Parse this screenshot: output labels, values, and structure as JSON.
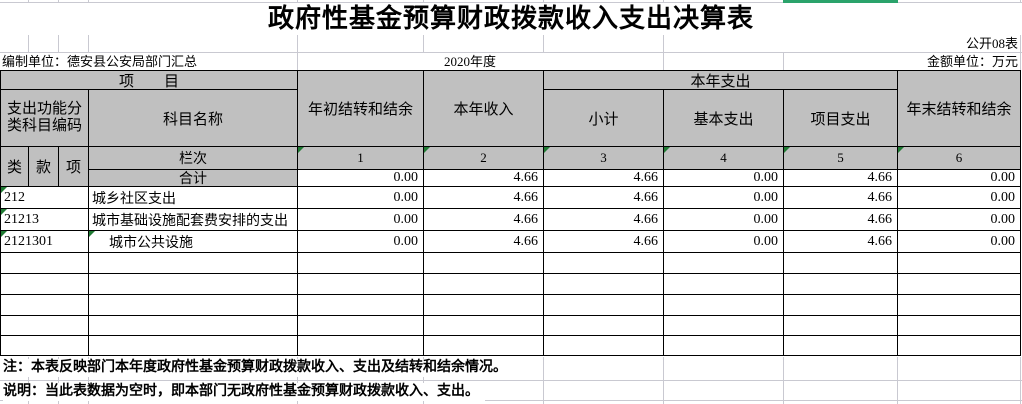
{
  "title": "政府性基金预算财政拨款收入支出决算表",
  "meta": {
    "table_no": "公开08表",
    "prepared_by": "编制单位：德安县公安局部门汇总",
    "year": "2020年度",
    "unit": "金额单位：万元"
  },
  "header": {
    "project": "项　　目",
    "func_code": "支出功能分类科目编码",
    "subject_name": "科目名称",
    "begin_balance": "年初结转和结余",
    "current_income": "本年收入",
    "current_expense": "本年支出",
    "subtotal": "小计",
    "basic_expense": "基本支出",
    "project_expense": "项目支出",
    "end_balance": "年末结转和结余",
    "class_label": "类",
    "section_label": "款",
    "item_label": "项",
    "column_label": "栏次",
    "column_numbers": [
      "1",
      "2",
      "3",
      "4",
      "5",
      "6"
    ]
  },
  "total_row": {
    "label": "合计",
    "values": [
      "0.00",
      "4.66",
      "4.66",
      "0.00",
      "4.66",
      "0.00"
    ]
  },
  "data_rows": [
    {
      "code": "212",
      "name": "城乡社区支出",
      "values": [
        "0.00",
        "4.66",
        "4.66",
        "0.00",
        "4.66",
        "0.00"
      ]
    },
    {
      "code": "21213",
      "name": "城市基础设施配套费安排的支出",
      "values": [
        "0.00",
        "4.66",
        "4.66",
        "0.00",
        "4.66",
        "0.00"
      ]
    },
    {
      "code": "2121301",
      "name": "城市公共设施",
      "values": [
        "0.00",
        "4.66",
        "4.66",
        "0.00",
        "4.66",
        "0.00"
      ]
    },
    {
      "code": "",
      "name": "",
      "values": [
        "",
        "",
        "",
        "",
        "",
        ""
      ]
    },
    {
      "code": "",
      "name": "",
      "values": [
        "",
        "",
        "",
        "",
        "",
        ""
      ]
    },
    {
      "code": "",
      "name": "",
      "values": [
        "",
        "",
        "",
        "",
        "",
        ""
      ]
    },
    {
      "code": "",
      "name": "",
      "values": [
        "",
        "",
        "",
        "",
        "",
        ""
      ]
    },
    {
      "code": "",
      "name": "",
      "values": [
        "",
        "",
        "",
        "",
        "",
        ""
      ]
    }
  ],
  "notes": {
    "note1": "注：本表反映部门本年度政府性基金预算财政拨款收入、支出及结转和结余情况。",
    "note2": "说明：当此表数据为空时，即本部门无政府性基金预算财政拨款收入、支出。"
  },
  "colors": {
    "header_fill": "#c0c0c0",
    "table_border": "#000000",
    "faint_gridline": "#c9c9d1",
    "error_indicator_green": "#1f7a33",
    "selection_green": "#2aa36b"
  }
}
